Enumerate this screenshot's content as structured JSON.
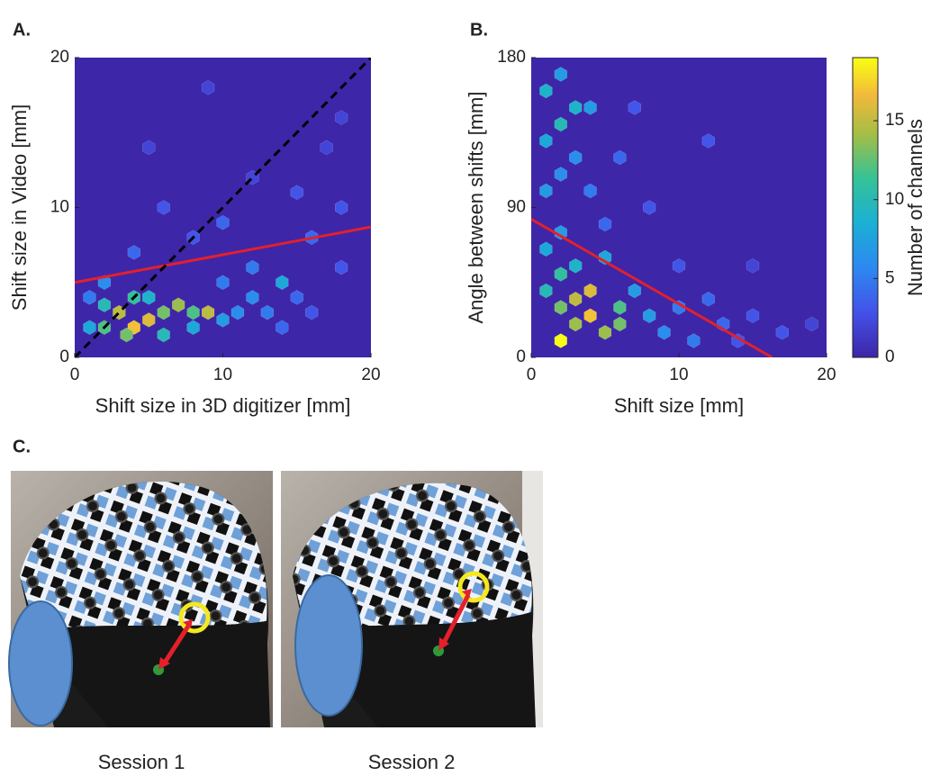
{
  "chart_data": [
    {
      "type": "hexbin",
      "panel_label": "A.",
      "xlabel": "Shift size in 3D digitizer [mm]",
      "ylabel": "Shift size in Video [mm]",
      "xlim": [
        0,
        20
      ],
      "ylim": [
        0,
        20
      ],
      "xticks": [
        0,
        10,
        20
      ],
      "yticks": [
        0,
        10,
        20
      ],
      "clim": [
        0,
        19
      ],
      "hexes": [
        [
          3,
          3,
          15
        ],
        [
          4,
          2,
          17
        ],
        [
          5,
          2.5,
          16
        ],
        [
          2,
          2,
          12
        ],
        [
          3.5,
          1.5,
          13
        ],
        [
          6,
          3,
          13
        ],
        [
          7,
          3.5,
          14
        ],
        [
          8,
          3,
          12
        ],
        [
          9,
          3,
          15
        ],
        [
          4,
          4,
          11
        ],
        [
          2,
          3.5,
          10
        ],
        [
          5,
          4,
          9
        ],
        [
          6,
          1.5,
          10
        ],
        [
          8,
          2,
          8
        ],
        [
          10,
          2.5,
          7
        ],
        [
          11,
          3,
          6
        ],
        [
          12,
          4,
          6
        ],
        [
          14,
          5,
          8
        ],
        [
          13,
          3,
          5
        ],
        [
          15,
          4,
          4
        ],
        [
          16,
          3,
          3
        ],
        [
          10,
          5,
          5
        ],
        [
          12,
          6,
          5
        ],
        [
          16,
          8,
          4
        ],
        [
          4,
          7,
          4
        ],
        [
          8,
          8,
          3
        ],
        [
          10,
          9,
          4
        ],
        [
          6,
          10,
          3
        ],
        [
          18,
          10,
          3
        ],
        [
          15,
          11,
          3
        ],
        [
          12,
          12,
          2
        ],
        [
          17,
          14,
          2
        ],
        [
          18,
          16,
          2
        ],
        [
          5,
          14,
          2
        ],
        [
          9,
          18,
          2
        ],
        [
          2,
          5,
          6
        ],
        [
          1,
          4,
          5
        ],
        [
          1,
          2,
          8
        ],
        [
          14,
          2,
          4
        ],
        [
          18,
          6,
          3
        ]
      ],
      "lines": [
        {
          "x": [
            0,
            20
          ],
          "y": [
            5,
            8.7
          ],
          "color": "#e3202b",
          "dashed": false
        },
        {
          "x": [
            0,
            20
          ],
          "y": [
            0,
            20
          ],
          "color": "#000000",
          "dashed": true
        }
      ]
    },
    {
      "type": "hexbin",
      "panel_label": "B.",
      "xlabel": "Shift size [mm]",
      "ylabel": "Angle between shifts [mm]",
      "xlim": [
        0,
        20
      ],
      "ylim": [
        0,
        180
      ],
      "xticks": [
        0,
        10,
        20
      ],
      "yticks": [
        0,
        90,
        180
      ],
      "clim": [
        0,
        19
      ],
      "hexes": [
        [
          2,
          10,
          19
        ],
        [
          3,
          20,
          14
        ],
        [
          4,
          25,
          17
        ],
        [
          5,
          15,
          14
        ],
        [
          2,
          30,
          13
        ],
        [
          3,
          35,
          15
        ],
        [
          4,
          40,
          16
        ],
        [
          6,
          20,
          13
        ],
        [
          6,
          30,
          12
        ],
        [
          1,
          40,
          10
        ],
        [
          2,
          50,
          11
        ],
        [
          3,
          55,
          9
        ],
        [
          1,
          65,
          8
        ],
        [
          2,
          75,
          7
        ],
        [
          1,
          100,
          7
        ],
        [
          2,
          110,
          6
        ],
        [
          1,
          130,
          8
        ],
        [
          2,
          140,
          10
        ],
        [
          3,
          150,
          9
        ],
        [
          1,
          160,
          9
        ],
        [
          2,
          170,
          7
        ],
        [
          4,
          150,
          7
        ],
        [
          3,
          120,
          6
        ],
        [
          4,
          100,
          5
        ],
        [
          5,
          60,
          8
        ],
        [
          7,
          40,
          7
        ],
        [
          8,
          25,
          7
        ],
        [
          9,
          15,
          6
        ],
        [
          10,
          30,
          5
        ],
        [
          11,
          10,
          5
        ],
        [
          12,
          35,
          4
        ],
        [
          13,
          20,
          4
        ],
        [
          14,
          10,
          3
        ],
        [
          15,
          25,
          3
        ],
        [
          5,
          80,
          4
        ],
        [
          6,
          120,
          4
        ],
        [
          8,
          90,
          3
        ],
        [
          10,
          55,
          3
        ],
        [
          7,
          150,
          3
        ],
        [
          12,
          130,
          3
        ],
        [
          17,
          15,
          3
        ],
        [
          19,
          20,
          2
        ],
        [
          15,
          55,
          2
        ]
      ],
      "lines": [
        {
          "x": [
            0,
            16.3
          ],
          "y": [
            83,
            0
          ],
          "color": "#e3202b",
          "dashed": false
        }
      ],
      "colorbar": {
        "label": "Number of channels",
        "lim": [
          0,
          19
        ],
        "ticks": [
          0,
          5,
          10,
          15
        ]
      }
    }
  ],
  "panel_c": {
    "label": "C.",
    "captions": [
      "Session 1",
      "Session 2"
    ]
  }
}
